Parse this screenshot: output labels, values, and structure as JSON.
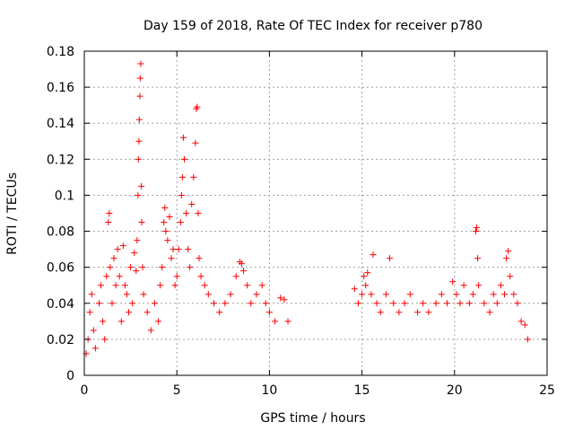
{
  "chart_data": {
    "type": "scatter",
    "title": "Day 159 of 2018, Rate Of TEC Index for receiver p780",
    "xlabel": "GPS time / hours",
    "ylabel": "ROTI / TECUs",
    "xlim": [
      0,
      25
    ],
    "ylim": [
      0,
      0.18
    ],
    "xticks": [
      0,
      5,
      10,
      15,
      20,
      25
    ],
    "xtick_labels": [
      "0",
      "5",
      "10",
      "15",
      "20",
      "25"
    ],
    "yticks": [
      0,
      0.02,
      0.04,
      0.06,
      0.08,
      0.1,
      0.12,
      0.14,
      0.16,
      0.18
    ],
    "ytick_labels": [
      "0",
      "0.02",
      "0.04",
      "0.06",
      "0.08",
      "0.1",
      "0.12",
      "0.14",
      "0.16",
      "0.18"
    ],
    "grid": true,
    "marker": "+",
    "color": "#ff0000",
    "series": [
      {
        "points": [
          [
            0.1,
            0.012
          ],
          [
            0.2,
            0.02
          ],
          [
            0.3,
            0.035
          ],
          [
            0.4,
            0.045
          ],
          [
            0.5,
            0.025
          ],
          [
            0.6,
            0.015
          ],
          [
            0.8,
            0.04
          ],
          [
            0.9,
            0.05
          ],
          [
            1.0,
            0.03
          ],
          [
            1.1,
            0.02
          ],
          [
            1.2,
            0.055
          ],
          [
            1.3,
            0.085
          ],
          [
            1.35,
            0.09
          ],
          [
            1.4,
            0.06
          ],
          [
            1.5,
            0.04
          ],
          [
            1.6,
            0.065
          ],
          [
            1.7,
            0.05
          ],
          [
            1.8,
            0.07
          ],
          [
            1.9,
            0.055
          ],
          [
            2.0,
            0.03
          ],
          [
            2.1,
            0.072
          ],
          [
            2.2,
            0.05
          ],
          [
            2.3,
            0.045
          ],
          [
            2.4,
            0.035
          ],
          [
            2.5,
            0.06
          ],
          [
            2.6,
            0.04
          ],
          [
            2.7,
            0.068
          ],
          [
            2.8,
            0.058
          ],
          [
            2.85,
            0.075
          ],
          [
            2.9,
            0.1
          ],
          [
            2.92,
            0.12
          ],
          [
            2.95,
            0.13
          ],
          [
            2.97,
            0.142
          ],
          [
            3.0,
            0.155
          ],
          [
            3.02,
            0.165
          ],
          [
            3.05,
            0.173
          ],
          [
            3.08,
            0.105
          ],
          [
            3.1,
            0.085
          ],
          [
            3.15,
            0.06
          ],
          [
            3.2,
            0.045
          ],
          [
            3.4,
            0.035
          ],
          [
            3.6,
            0.025
          ],
          [
            3.8,
            0.04
          ],
          [
            4.0,
            0.03
          ],
          [
            4.1,
            0.05
          ],
          [
            4.2,
            0.06
          ],
          [
            4.3,
            0.085
          ],
          [
            4.35,
            0.093
          ],
          [
            4.4,
            0.08
          ],
          [
            4.5,
            0.075
          ],
          [
            4.6,
            0.088
          ],
          [
            4.7,
            0.065
          ],
          [
            4.8,
            0.07
          ],
          [
            4.9,
            0.05
          ],
          [
            5.0,
            0.055
          ],
          [
            5.1,
            0.07
          ],
          [
            5.2,
            0.085
          ],
          [
            5.25,
            0.1
          ],
          [
            5.3,
            0.11
          ],
          [
            5.35,
            0.132
          ],
          [
            5.4,
            0.12
          ],
          [
            5.5,
            0.09
          ],
          [
            5.6,
            0.07
          ],
          [
            5.7,
            0.06
          ],
          [
            5.8,
            0.095
          ],
          [
            5.9,
            0.11
          ],
          [
            6.0,
            0.129
          ],
          [
            6.05,
            0.148
          ],
          [
            6.1,
            0.149
          ],
          [
            6.15,
            0.09
          ],
          [
            6.2,
            0.065
          ],
          [
            6.3,
            0.055
          ],
          [
            6.5,
            0.05
          ],
          [
            6.7,
            0.045
          ],
          [
            7.0,
            0.04
          ],
          [
            7.3,
            0.035
          ],
          [
            7.6,
            0.04
          ],
          [
            7.9,
            0.045
          ],
          [
            8.2,
            0.055
          ],
          [
            8.4,
            0.063
          ],
          [
            8.5,
            0.062
          ],
          [
            8.6,
            0.058
          ],
          [
            8.8,
            0.05
          ],
          [
            9.0,
            0.04
          ],
          [
            9.3,
            0.045
          ],
          [
            9.6,
            0.05
          ],
          [
            9.8,
            0.04
          ],
          [
            10.0,
            0.035
          ],
          [
            10.3,
            0.03
          ],
          [
            10.6,
            0.043
          ],
          [
            10.8,
            0.042
          ],
          [
            11.0,
            0.03
          ],
          [
            14.6,
            0.048
          ],
          [
            14.8,
            0.04
          ],
          [
            15.0,
            0.045
          ],
          [
            15.1,
            0.055
          ],
          [
            15.2,
            0.05
          ],
          [
            15.3,
            0.057
          ],
          [
            15.5,
            0.045
          ],
          [
            15.6,
            0.067
          ],
          [
            15.8,
            0.04
          ],
          [
            16.0,
            0.035
          ],
          [
            16.3,
            0.045
          ],
          [
            16.5,
            0.065
          ],
          [
            16.7,
            0.04
          ],
          [
            17.0,
            0.035
          ],
          [
            17.3,
            0.04
          ],
          [
            17.6,
            0.045
          ],
          [
            18.0,
            0.035
          ],
          [
            18.3,
            0.04
          ],
          [
            18.6,
            0.035
          ],
          [
            19.0,
            0.04
          ],
          [
            19.3,
            0.045
          ],
          [
            19.6,
            0.04
          ],
          [
            19.9,
            0.052
          ],
          [
            20.1,
            0.045
          ],
          [
            20.3,
            0.04
          ],
          [
            20.5,
            0.05
          ],
          [
            20.8,
            0.04
          ],
          [
            21.0,
            0.045
          ],
          [
            21.15,
            0.08
          ],
          [
            21.2,
            0.082
          ],
          [
            21.25,
            0.065
          ],
          [
            21.3,
            0.05
          ],
          [
            21.6,
            0.04
          ],
          [
            21.9,
            0.035
          ],
          [
            22.1,
            0.045
          ],
          [
            22.3,
            0.04
          ],
          [
            22.5,
            0.05
          ],
          [
            22.7,
            0.045
          ],
          [
            22.8,
            0.065
          ],
          [
            22.9,
            0.069
          ],
          [
            23.0,
            0.055
          ],
          [
            23.2,
            0.045
          ],
          [
            23.4,
            0.04
          ],
          [
            23.6,
            0.03
          ],
          [
            23.8,
            0.028
          ],
          [
            23.95,
            0.02
          ]
        ]
      }
    ]
  }
}
